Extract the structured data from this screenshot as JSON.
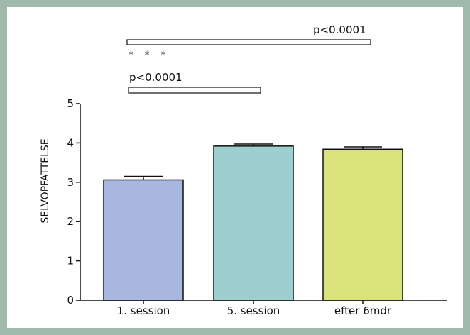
{
  "chart_data": {
    "type": "bar",
    "title": "",
    "xlabel": "",
    "ylabel": "SELVOPFATTELSE",
    "ylim": [
      0,
      5
    ],
    "yticks": [
      "0",
      "1",
      "2",
      "3",
      "4",
      "5"
    ],
    "categories": [
      "1. session",
      "5. session",
      "efter 6mdr"
    ],
    "values": [
      3.06,
      3.92,
      3.84
    ],
    "errors": [
      0.09,
      0.05,
      0.06
    ],
    "colors": [
      "#a7b7e0",
      "#9ccfcd",
      "#d9e27b"
    ],
    "grid": false,
    "annotations": [
      {
        "label": "p<0.0001",
        "from": "1. session",
        "to": "efter 6mdr"
      },
      {
        "label": "* * *"
      },
      {
        "label": "p<0.0001",
        "from": "1. session",
        "to": "5. session"
      }
    ]
  },
  "frame_color": "#9fb9ad"
}
